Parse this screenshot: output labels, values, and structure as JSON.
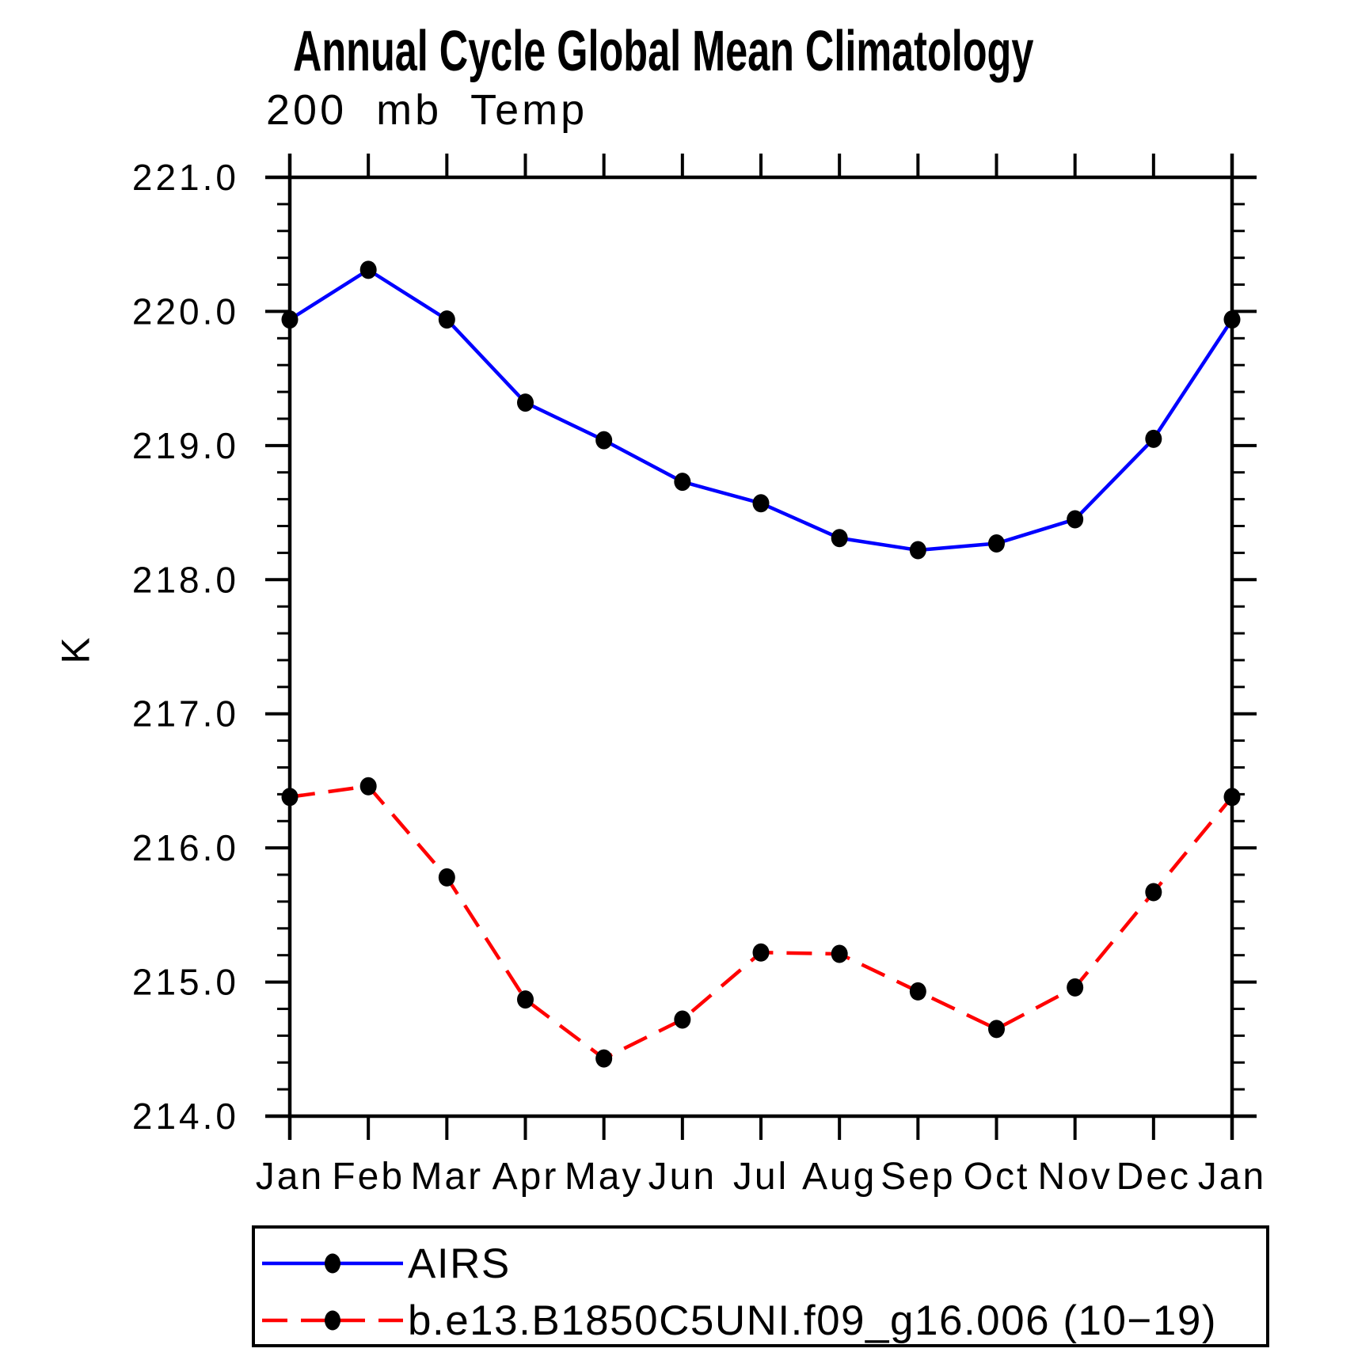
{
  "chart_data": {
    "type": "line",
    "title": "Annual Cycle Global Mean Climatology",
    "subtitle": "200 mb Temp",
    "ylabel": "K",
    "xlabel": "",
    "categories": [
      "Jan",
      "Feb",
      "Mar",
      "Apr",
      "May",
      "Jun",
      "Jul",
      "Aug",
      "Sep",
      "Oct",
      "Nov",
      "Dec",
      "Jan"
    ],
    "series": [
      {
        "name": "AIRS",
        "line_color": "#0000ff",
        "line_style": "solid",
        "marker": "filled-circle",
        "marker_color": "#000000",
        "values": [
          219.94,
          220.31,
          219.94,
          219.32,
          219.04,
          218.73,
          218.57,
          218.31,
          218.22,
          218.27,
          218.45,
          219.05,
          219.94
        ]
      },
      {
        "name": "b.e13.B1850C5UNI.f09_g16.006 (10−19)",
        "line_color": "#ff0000",
        "line_style": "dashed",
        "marker": "filled-circle",
        "marker_color": "#000000",
        "values": [
          216.38,
          216.46,
          215.78,
          214.87,
          214.43,
          214.72,
          215.22,
          215.21,
          214.93,
          214.65,
          214.96,
          215.67,
          216.38
        ]
      }
    ],
    "ylim": [
      214.0,
      221.0
    ],
    "ytick_interval": 1.0,
    "yminor_interval": 0.2,
    "ytick_labels": [
      "221.0",
      "220.0",
      "219.0",
      "218.0",
      "217.0",
      "216.0",
      "215.0",
      "214.0"
    ],
    "grid": false,
    "legend_position": "bottom-left-box",
    "axis_color": "#000000",
    "background_color": "#ffffff"
  }
}
